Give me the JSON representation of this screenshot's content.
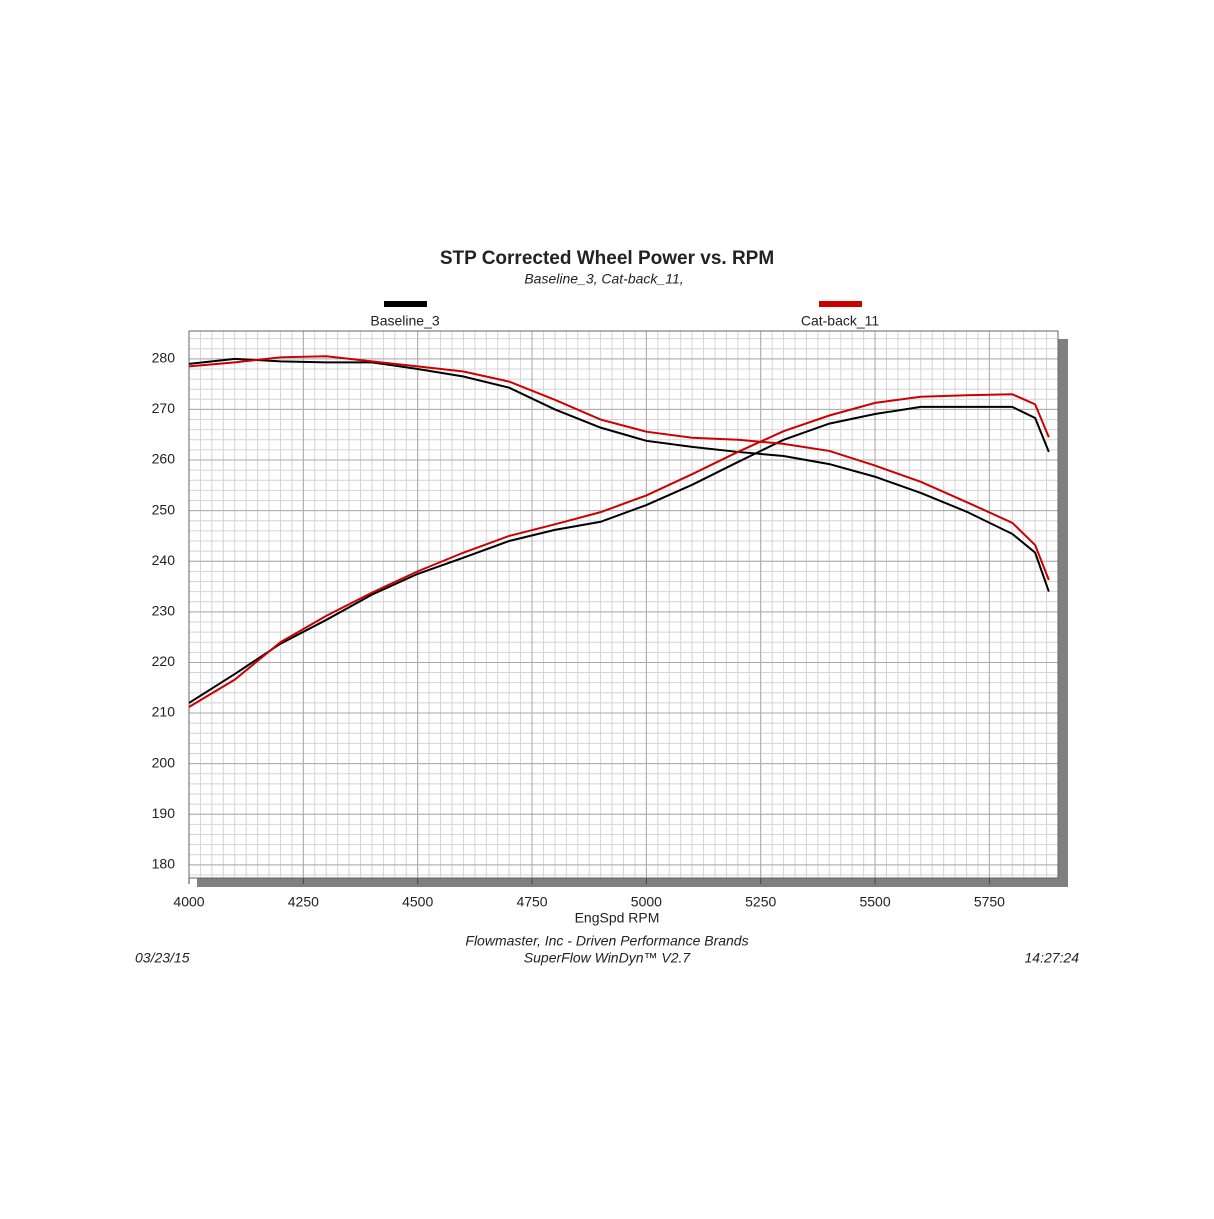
{
  "chart_data": {
    "type": "line",
    "title": "STP Corrected Wheel Power vs. RPM",
    "subtitle": "Baseline_3, Cat-back_11,",
    "x_label": "EngSpd  RPM",
    "footer": [
      "Flowmaster, Inc - Driven Performance Brands",
      "SuperFlow WinDyn™ V2.7"
    ],
    "date": "03/23/15",
    "time": "14:27:24",
    "x": [
      4000,
      4100,
      4200,
      4300,
      4400,
      4500,
      4600,
      4700,
      4800,
      4900,
      5000,
      5100,
      5200,
      5300,
      5400,
      5500,
      5600,
      5700,
      5800,
      5850,
      5880
    ],
    "series": [
      {
        "name": "Baseline_3",
        "color": "#000000",
        "values": [
          212,
          217.7,
          223.7,
          228.4,
          233.4,
          237.5,
          240.7,
          244,
          246.2,
          247.8,
          251.1,
          255.1,
          259.6,
          264,
          267.2,
          269.1,
          270.5,
          270.5,
          270.5,
          268.3,
          261.6
        ],
        "values2": [
          279,
          280,
          279.5,
          279.3,
          279.3,
          278,
          276.5,
          274.3,
          270,
          266.4,
          263.8,
          262.6,
          261.6,
          260.8,
          259.2,
          256.7,
          253.5,
          249.8,
          245.4,
          241.7,
          234
        ]
      },
      {
        "name": "Cat-back_11",
        "color": "#cc0000",
        "values": [
          211.2,
          216.6,
          224,
          229.2,
          233.8,
          238,
          241.7,
          245,
          247.3,
          249.7,
          253,
          257.2,
          261.6,
          265.7,
          268.8,
          271.3,
          272.5,
          272.8,
          273,
          271,
          264.5
        ],
        "values2": [
          278.5,
          279.3,
          280.3,
          280.5,
          279.5,
          278.5,
          277.5,
          275.5,
          271.9,
          268,
          265.6,
          264.4,
          264,
          263.2,
          261.8,
          258.9,
          255.7,
          251.7,
          247.6,
          243.2,
          236.3
        ]
      }
    ],
    "xlim": [
      4000,
      5900
    ],
    "xticks": [
      4000,
      4250,
      4500,
      4750,
      5000,
      5250,
      5500,
      5750
    ],
    "ylim": [
      177.4,
      285.5
    ],
    "yticks": [
      180,
      190,
      200,
      210,
      220,
      230,
      240,
      250,
      260,
      270,
      280
    ],
    "grid": true
  }
}
